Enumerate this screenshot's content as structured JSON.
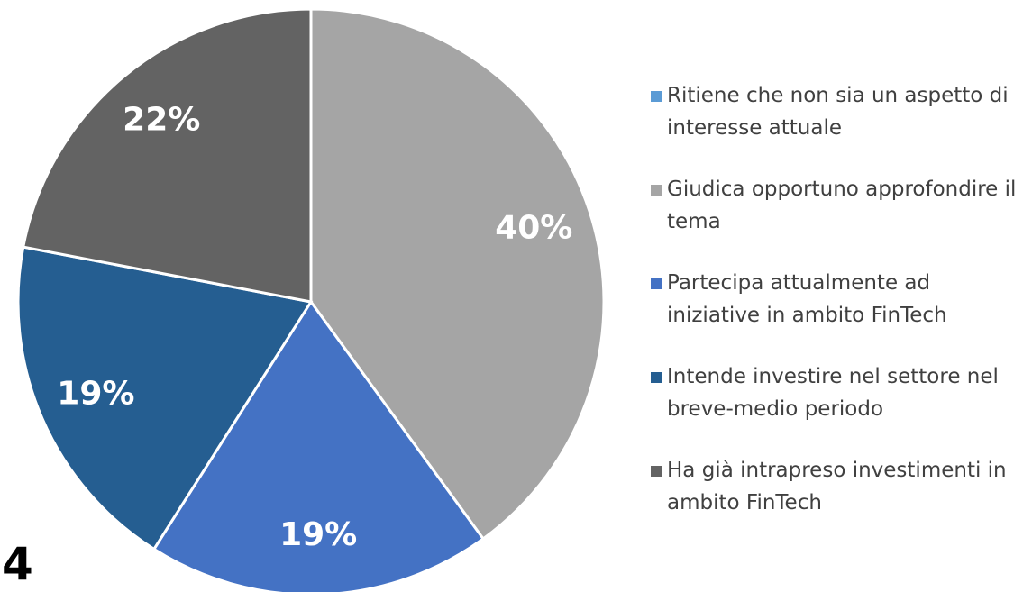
{
  "chart_data": {
    "type": "pie",
    "categories": [
      "Ritiene che non sia un aspetto di interesse attuale",
      "Giudica opportuno approfondire il tema",
      "Partecipa attualmente ad iniziative in ambito FinTech",
      "Intende investire nel settore nel breve-medio periodo",
      "Ha già intrapreso investimenti in ambito FinTech"
    ],
    "values": [
      0,
      40,
      19,
      19,
      22
    ],
    "value_labels": [
      null,
      "40%",
      "19%",
      "19%",
      "22%"
    ],
    "colors": [
      "#5b9bd5",
      "#a5a5a5",
      "#4472c4",
      "#255e91",
      "#636363"
    ],
    "legend": "right",
    "annotation": "4"
  }
}
